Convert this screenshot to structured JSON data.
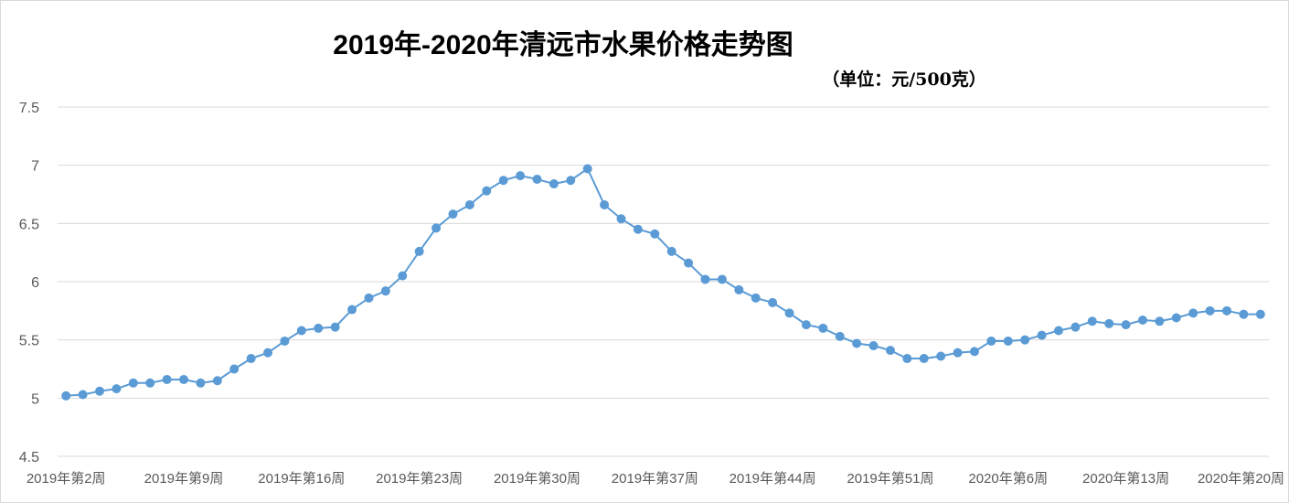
{
  "chart_data": {
    "type": "line",
    "title": "2019年-2020年清远市水果价格走势图",
    "unit_label": "（单位：元/500克）",
    "ylim": [
      4.5,
      7.5
    ],
    "y_ticks": [
      "4.5",
      "5",
      "5.5",
      "6",
      "6.5",
      "7",
      "7.5"
    ],
    "y_tick_values": [
      4.5,
      5,
      5.5,
      6,
      6.5,
      7,
      7.5
    ],
    "grid": true,
    "x_tick_labels": [
      "2019年第2周",
      "2019年第9周",
      "2019年第16周",
      "2019年第23周",
      "2019年第30周",
      "2019年第37周",
      "2019年第44周",
      "2019年第51周",
      "2020年第6周",
      "2020年第13周",
      "2020年第20周"
    ],
    "x_tick_positions": [
      0,
      7,
      14,
      21,
      28,
      35,
      42,
      49,
      56,
      63,
      70
    ],
    "color": "#5b9bd5",
    "series": [
      {
        "values": [
          5.02,
          5.03,
          5.06,
          5.08,
          5.13,
          5.13,
          5.16,
          5.16,
          5.13,
          5.15,
          5.25,
          5.34,
          5.39,
          5.49,
          5.58,
          5.6,
          5.61,
          5.76,
          5.86,
          5.92,
          6.05,
          6.26,
          6.46,
          6.58,
          6.66,
          6.78,
          6.87,
          6.91,
          6.88,
          6.84,
          6.87,
          6.97,
          6.66,
          6.54,
          6.45,
          6.41,
          6.26,
          6.16,
          6.02,
          6.02,
          5.93,
          5.86,
          5.82,
          5.73,
          5.63,
          5.6,
          5.53,
          5.47,
          5.45,
          5.41,
          5.34,
          5.34,
          5.36,
          5.39,
          5.4,
          5.49,
          5.49,
          5.5,
          5.54,
          5.58,
          5.61,
          5.66,
          5.64,
          5.63,
          5.67,
          5.66,
          5.69,
          5.73,
          5.75,
          5.75,
          5.72,
          5.72
        ]
      }
    ]
  }
}
